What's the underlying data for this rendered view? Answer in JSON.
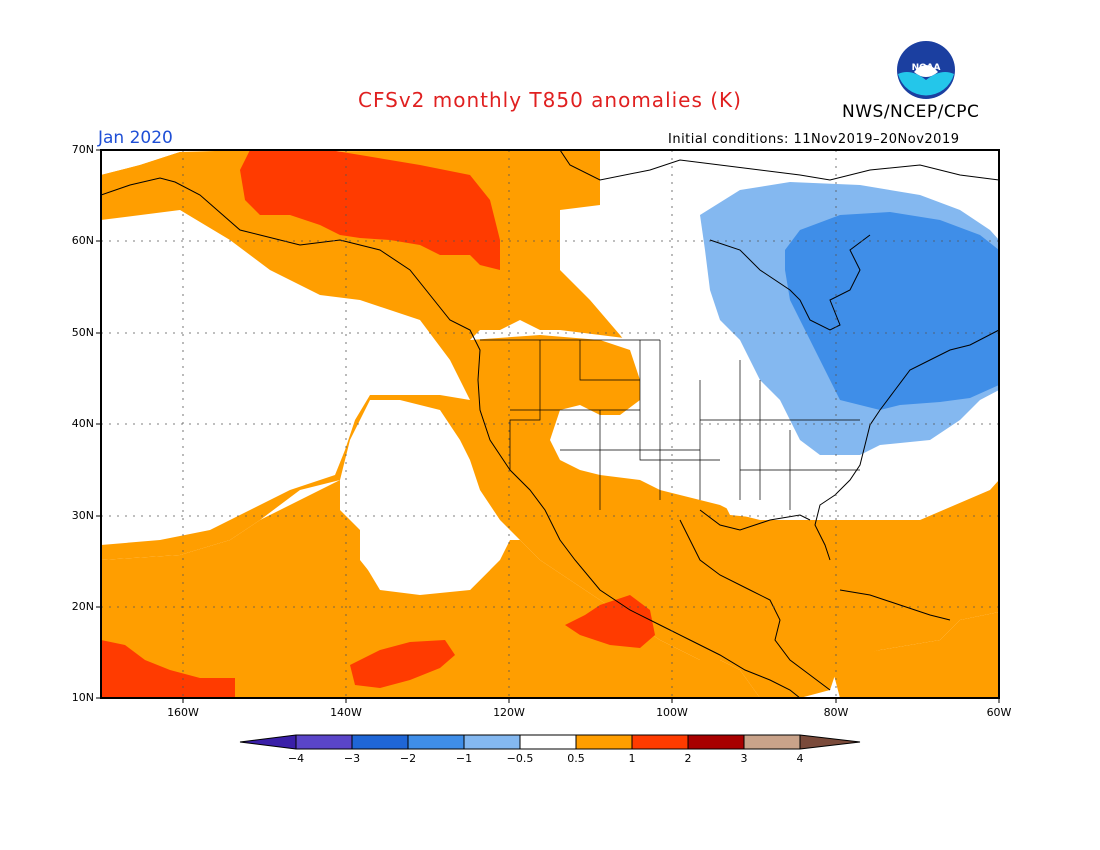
{
  "header": {
    "title": "CFSv2 monthly T850 anomalies (K)",
    "agency": "NWS/NCEP/CPC",
    "month": "Jan 2020",
    "initial_conditions": "Initial conditions: 11Nov2019–20Nov2019",
    "logo_text": "NOAA"
  },
  "axes": {
    "lat_labels": [
      "70N",
      "60N",
      "50N",
      "40N",
      "30N",
      "20N",
      "10N"
    ],
    "lat_values": [
      70,
      60,
      50,
      40,
      30,
      20,
      10
    ],
    "lon_labels": [
      "160W",
      "140W",
      "120W",
      "100W",
      "80W",
      "60W"
    ],
    "lon_values": [
      -160,
      -140,
      -120,
      -100,
      -80,
      -60
    ],
    "lat_range": [
      10,
      70
    ],
    "lon_range": [
      -170,
      -60
    ],
    "grid": "dotted"
  },
  "colorbar": {
    "labels": [
      "−4",
      "−3",
      "−2",
      "−1",
      "−0.5",
      "0.5",
      "1",
      "2",
      "3",
      "4"
    ],
    "colors": [
      "#3a1fa8",
      "#5a45c8",
      "#1f66d6",
      "#3f8ee8",
      "#84b8f0",
      "#ffffff",
      "#ff9e00",
      "#ff3b00",
      "#a80000",
      "#c9a38a",
      "#7a4a3a"
    ]
  },
  "legend_colors": {
    "orange": "#ff9e00",
    "red": "#ff3b00",
    "light_blue": "#84b8f0",
    "blue": "#3f8ee8"
  }
}
